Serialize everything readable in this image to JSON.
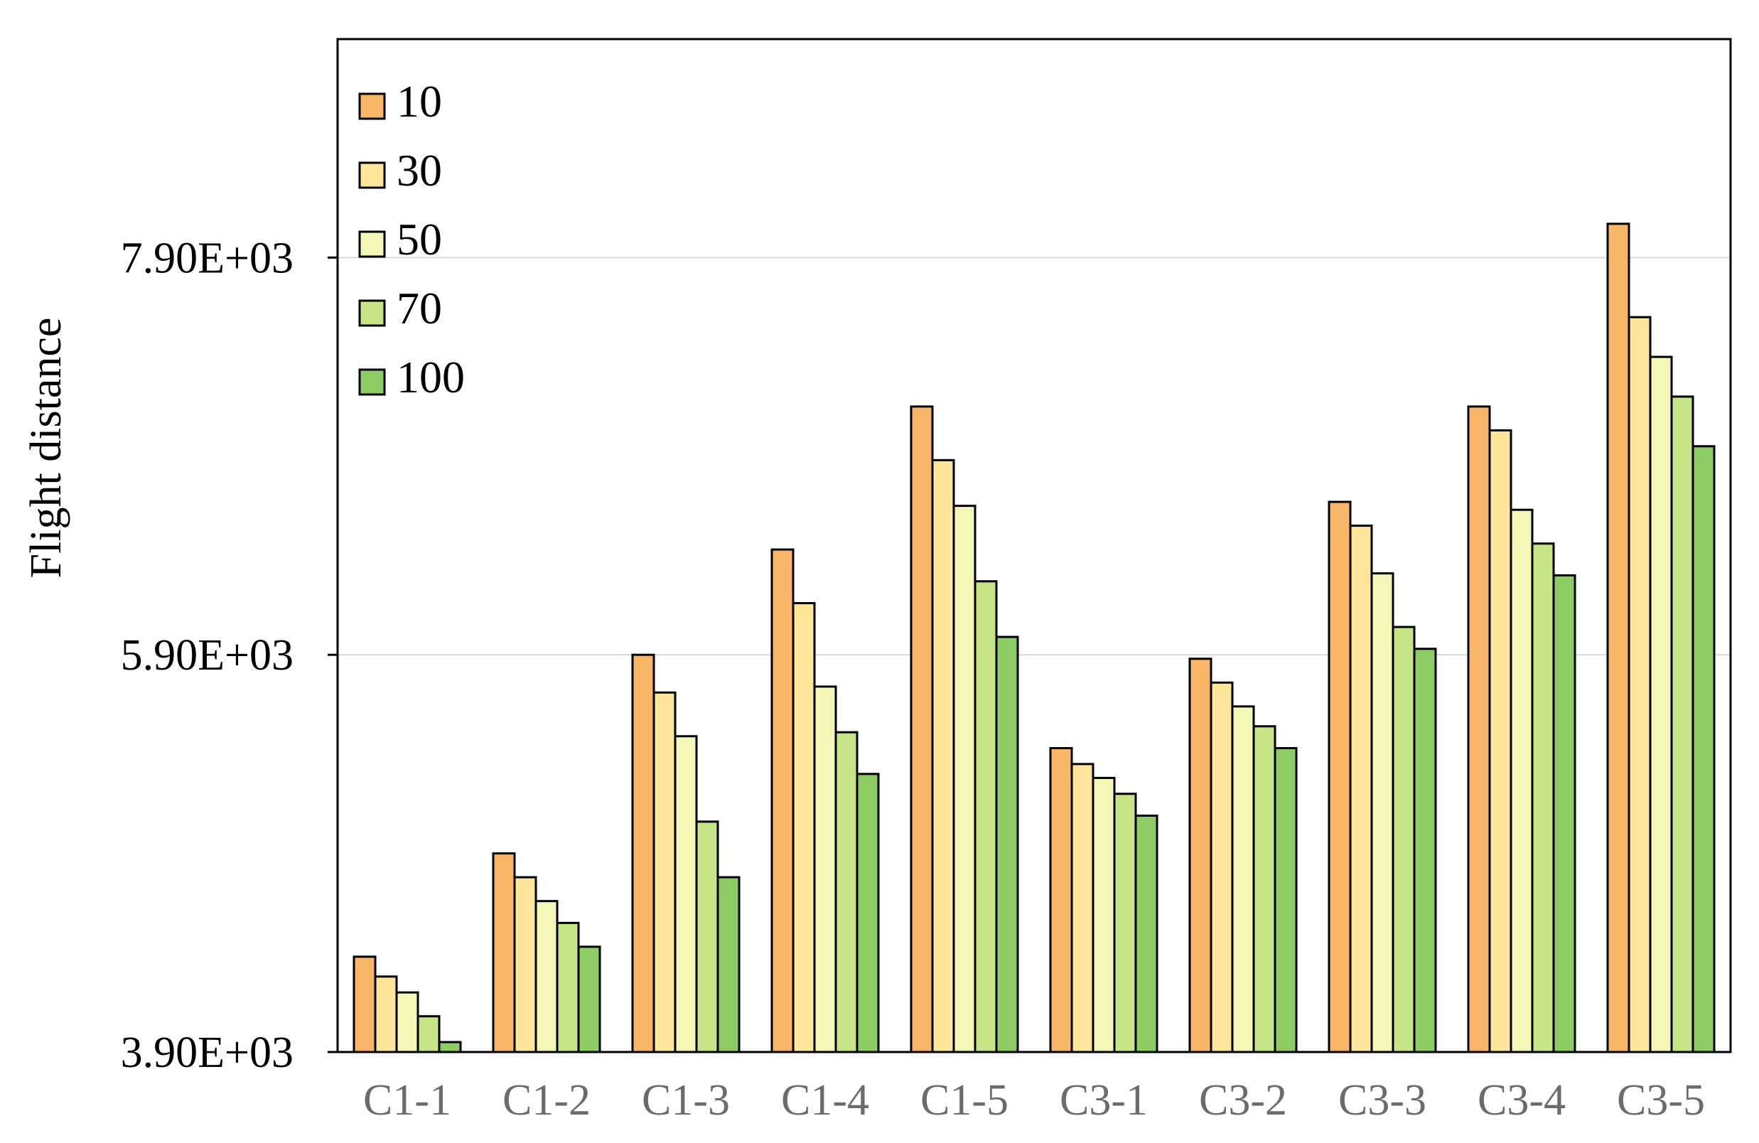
{
  "chart_data": {
    "type": "bar",
    "title": "",
    "xlabel": "",
    "ylabel": "Flight distance",
    "ylim": [
      3900,
      9000
    ],
    "yticks": [
      3900,
      5900,
      7900
    ],
    "ytick_labels": [
      "3.90E+03",
      "5.90E+03",
      "7.90E+03"
    ],
    "grid": true,
    "legend_position": "top-left",
    "categories": [
      "C1-1",
      "C1-2",
      "C1-3",
      "C1-4",
      "C1-5",
      "C3-1",
      "C3-2",
      "C3-3",
      "C3-4",
      "C3-5"
    ],
    "series": [
      {
        "name": "10",
        "color": "#F9B668",
        "values": [
          4380,
          4900,
          5900,
          6430,
          7150,
          5430,
          5880,
          6670,
          7150,
          8070
        ]
      },
      {
        "name": "30",
        "color": "#FDE59A",
        "values": [
          4280,
          4780,
          5710,
          6160,
          6880,
          5350,
          5760,
          6550,
          7030,
          7600
        ]
      },
      {
        "name": "50",
        "color": "#F4F8B6",
        "values": [
          4200,
          4660,
          5490,
          5740,
          6650,
          5280,
          5640,
          6310,
          6630,
          7400
        ]
      },
      {
        "name": "70",
        "color": "#C6E586",
        "values": [
          4080,
          4550,
          5060,
          5510,
          6270,
          5200,
          5540,
          6040,
          6460,
          7200
        ]
      },
      {
        "name": "100",
        "color": "#8DCB64",
        "values": [
          3950,
          4430,
          4780,
          5300,
          5990,
          5090,
          5430,
          5930,
          6300,
          6950
        ]
      }
    ]
  }
}
